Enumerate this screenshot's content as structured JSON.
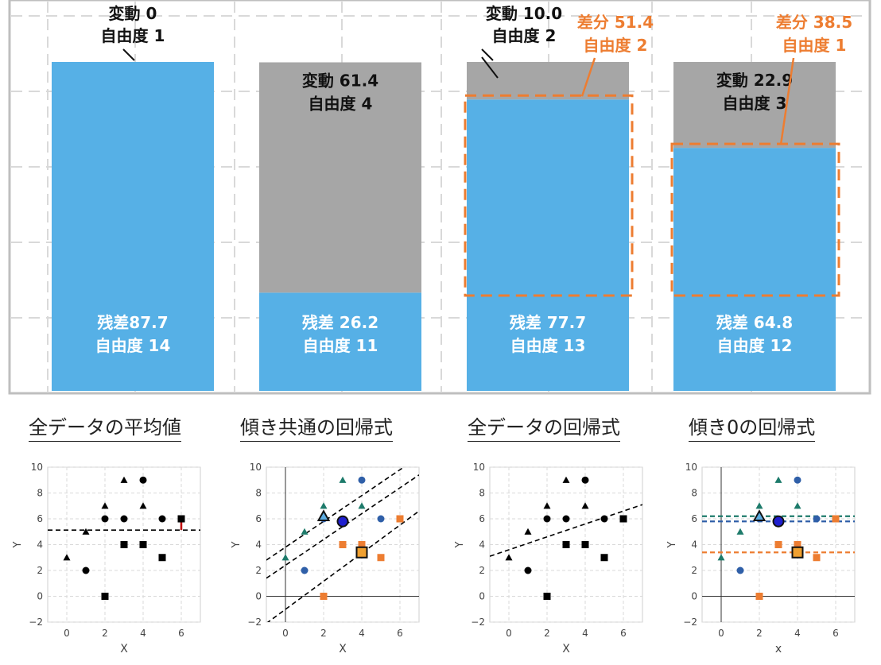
{
  "chart_data": {
    "main": {
      "type": "bar",
      "stacked": true,
      "ylim": [
        0,
        87.7
      ],
      "grid": true,
      "bars": [
        {
          "residual": 87.7,
          "residual_label": "残差87.7",
          "residual_df_label": "自由度 14",
          "variation": 0,
          "variation_label": "変動 0",
          "variation_df_label": "自由度 1",
          "difference": null
        },
        {
          "residual": 26.2,
          "residual_label": "残差 26.2",
          "residual_df_label": "自由度 11",
          "variation": 61.4,
          "variation_label": "変動 61.4",
          "variation_df_label": "自由度 4",
          "difference": null
        },
        {
          "residual": 77.7,
          "residual_label": "残差 77.7",
          "residual_df_label": "自由度 13",
          "variation": 10.0,
          "variation_label": "変動 10.0",
          "variation_df_label": "自由度 2",
          "difference": {
            "value": 51.4,
            "label": "差分 51.4",
            "df_label": "自由度 2"
          }
        },
        {
          "residual": 64.8,
          "residual_label": "残差 64.8",
          "residual_df_label": "自由度 12",
          "variation": 22.9,
          "variation_label": "変動 22.9",
          "variation_df_label": "自由度 3",
          "difference": {
            "value": 38.5,
            "label": "差分 38.5",
            "df_label": "自由度 1"
          }
        }
      ],
      "colors": {
        "residual": "#56b0e6",
        "variation": "#a6a6a6",
        "difference": "#ed7d31",
        "grid": "#d9d9d9",
        "frame": "#bfbfbf"
      }
    },
    "small": [
      {
        "type": "scatter",
        "caption": "全データの平均値",
        "xlabel": "X",
        "ylabel": "Y",
        "xlim": [
          -1,
          7
        ],
        "ylim": [
          -2,
          10
        ],
        "xticks": [
          0,
          2,
          4,
          6
        ],
        "yticks": [
          -2,
          0,
          2,
          4,
          6,
          8,
          10
        ],
        "xtick_labels": [
          "0",
          "2",
          "4",
          "6"
        ],
        "ytick_labels": [
          "−2",
          "0",
          "2",
          "4",
          "6",
          "8",
          "10"
        ],
        "show_axes_lines": false,
        "points": [
          {
            "x": 0,
            "y": 3,
            "m": "triangle",
            "c": "black"
          },
          {
            "x": 1,
            "y": 5,
            "m": "triangle",
            "c": "black"
          },
          {
            "x": 2,
            "y": 7,
            "m": "triangle",
            "c": "black"
          },
          {
            "x": 3,
            "y": 9,
            "m": "triangle",
            "c": "black"
          },
          {
            "x": 4,
            "y": 7,
            "m": "triangle",
            "c": "black"
          },
          {
            "x": 1,
            "y": 2,
            "m": "circle",
            "c": "black"
          },
          {
            "x": 2,
            "y": 6,
            "m": "circle",
            "c": "black"
          },
          {
            "x": 3,
            "y": 6,
            "m": "circle",
            "c": "black"
          },
          {
            "x": 4,
            "y": 9,
            "m": "circle",
            "c": "black"
          },
          {
            "x": 5,
            "y": 6,
            "m": "circle",
            "c": "black"
          },
          {
            "x": 2,
            "y": 0,
            "m": "square",
            "c": "black"
          },
          {
            "x": 3,
            "y": 4,
            "m": "square",
            "c": "black"
          },
          {
            "x": 4,
            "y": 4,
            "m": "square",
            "c": "black"
          },
          {
            "x": 5,
            "y": 3,
            "m": "square",
            "c": "black"
          },
          {
            "x": 6,
            "y": 6,
            "m": "square",
            "c": "black"
          }
        ],
        "lines": [
          {
            "x1": -1,
            "y1": 5.13,
            "x2": 7,
            "y2": 5.13,
            "c": "black"
          }
        ],
        "residual_segment": {
          "x": 6,
          "y1": 6,
          "y2": 5.13,
          "c": "#c00000"
        },
        "big_markers": []
      },
      {
        "type": "scatter",
        "caption": "傾き共通の回帰式",
        "xlabel": "X",
        "ylabel": "Y",
        "xlim": [
          -1,
          7
        ],
        "ylim": [
          -2,
          10
        ],
        "xticks": [
          0,
          2,
          4,
          6
        ],
        "yticks": [
          -2,
          0,
          2,
          4,
          6,
          8,
          10
        ],
        "xtick_labels": [
          "0",
          "2",
          "4",
          "6"
        ],
        "ytick_labels": [
          "−2",
          "0",
          "2",
          "4",
          "6",
          "8",
          "10"
        ],
        "show_axes_lines": true,
        "points": [
          {
            "x": 0,
            "y": 3,
            "m": "triangle",
            "c": "teal"
          },
          {
            "x": 1,
            "y": 5,
            "m": "triangle",
            "c": "teal"
          },
          {
            "x": 2,
            "y": 7,
            "m": "triangle",
            "c": "teal"
          },
          {
            "x": 3,
            "y": 9,
            "m": "triangle",
            "c": "teal"
          },
          {
            "x": 4,
            "y": 7,
            "m": "triangle",
            "c": "teal"
          },
          {
            "x": 1,
            "y": 2,
            "m": "circle",
            "c": "blue"
          },
          {
            "x": 2,
            "y": 6,
            "m": "circle",
            "c": "blue"
          },
          {
            "x": 4,
            "y": 9,
            "m": "circle",
            "c": "blue"
          },
          {
            "x": 5,
            "y": 6,
            "m": "circle",
            "c": "blue"
          },
          {
            "x": 2,
            "y": 0,
            "m": "square",
            "c": "orange"
          },
          {
            "x": 3,
            "y": 4,
            "m": "square",
            "c": "orange"
          },
          {
            "x": 4,
            "y": 4,
            "m": "square",
            "c": "orange"
          },
          {
            "x": 5,
            "y": 3,
            "m": "square",
            "c": "orange"
          },
          {
            "x": 6,
            "y": 6,
            "m": "square",
            "c": "orange"
          }
        ],
        "lines": [
          {
            "x1": -1,
            "y1": 2.8,
            "x2": 7,
            "y2": 10.8,
            "c": "black"
          },
          {
            "x1": -1,
            "y1": 1.4,
            "x2": 7,
            "y2": 9.4,
            "c": "black"
          },
          {
            "x1": -1,
            "y1": -2.1,
            "x2": 7,
            "y2": 6.6,
            "c": "black"
          }
        ],
        "big_markers": [
          {
            "x": 2,
            "y": 6.2,
            "m": "triangle",
            "c": "#5dade2"
          },
          {
            "x": 3,
            "y": 5.8,
            "m": "circle",
            "c": "#1f1fcf"
          },
          {
            "x": 4,
            "y": 3.4,
            "m": "square",
            "c": "#f0a030"
          }
        ]
      },
      {
        "type": "scatter",
        "caption": "全データの回帰式",
        "xlabel": "X",
        "ylabel": "Y",
        "xlim": [
          -1,
          7
        ],
        "ylim": [
          -2,
          10
        ],
        "xticks": [
          0,
          2,
          4,
          6
        ],
        "yticks": [
          -2,
          0,
          2,
          4,
          6,
          8,
          10
        ],
        "xtick_labels": [
          "0",
          "2",
          "4",
          "6"
        ],
        "ytick_labels": [
          "−2",
          "0",
          "2",
          "4",
          "6",
          "8",
          "10"
        ],
        "show_axes_lines": false,
        "points": [
          {
            "x": 0,
            "y": 3,
            "m": "triangle",
            "c": "black"
          },
          {
            "x": 1,
            "y": 5,
            "m": "triangle",
            "c": "black"
          },
          {
            "x": 2,
            "y": 7,
            "m": "triangle",
            "c": "black"
          },
          {
            "x": 3,
            "y": 9,
            "m": "triangle",
            "c": "black"
          },
          {
            "x": 4,
            "y": 7,
            "m": "triangle",
            "c": "black"
          },
          {
            "x": 1,
            "y": 2,
            "m": "circle",
            "c": "black"
          },
          {
            "x": 2,
            "y": 6,
            "m": "circle",
            "c": "black"
          },
          {
            "x": 3,
            "y": 6,
            "m": "circle",
            "c": "black"
          },
          {
            "x": 4,
            "y": 9,
            "m": "circle",
            "c": "black"
          },
          {
            "x": 5,
            "y": 6,
            "m": "circle",
            "c": "black"
          },
          {
            "x": 2,
            "y": 0,
            "m": "square",
            "c": "black"
          },
          {
            "x": 3,
            "y": 4,
            "m": "square",
            "c": "black"
          },
          {
            "x": 4,
            "y": 4,
            "m": "square",
            "c": "black"
          },
          {
            "x": 5,
            "y": 3,
            "m": "square",
            "c": "black"
          },
          {
            "x": 6,
            "y": 6,
            "m": "square",
            "c": "black"
          }
        ],
        "lines": [
          {
            "x1": -1,
            "y1": 3.1,
            "x2": 7,
            "y2": 7.1,
            "c": "black"
          }
        ],
        "big_markers": []
      },
      {
        "type": "scatter",
        "caption": "傾き0の回帰式",
        "xlabel": "x",
        "ylabel": "Y",
        "xlim": [
          -1,
          7
        ],
        "ylim": [
          -2,
          10
        ],
        "xticks": [
          0,
          2,
          4,
          6
        ],
        "yticks": [
          -2,
          0,
          2,
          4,
          6,
          8,
          10
        ],
        "xtick_labels": [
          "0",
          "2",
          "4",
          "6"
        ],
        "ytick_labels": [
          "−2",
          "0",
          "2",
          "4",
          "6",
          "8",
          "10"
        ],
        "show_axes_lines": true,
        "points": [
          {
            "x": 0,
            "y": 3,
            "m": "triangle",
            "c": "teal"
          },
          {
            "x": 1,
            "y": 5,
            "m": "triangle",
            "c": "teal"
          },
          {
            "x": 2,
            "y": 7,
            "m": "triangle",
            "c": "teal"
          },
          {
            "x": 3,
            "y": 9,
            "m": "triangle",
            "c": "teal"
          },
          {
            "x": 4,
            "y": 7,
            "m": "triangle",
            "c": "teal"
          },
          {
            "x": 1,
            "y": 2,
            "m": "circle",
            "c": "blue"
          },
          {
            "x": 2,
            "y": 6,
            "m": "circle",
            "c": "blue"
          },
          {
            "x": 4,
            "y": 9,
            "m": "circle",
            "c": "blue"
          },
          {
            "x": 5,
            "y": 6,
            "m": "circle",
            "c": "blue"
          },
          {
            "x": 2,
            "y": 0,
            "m": "square",
            "c": "orange"
          },
          {
            "x": 3,
            "y": 4,
            "m": "square",
            "c": "orange"
          },
          {
            "x": 4,
            "y": 4,
            "m": "square",
            "c": "orange"
          },
          {
            "x": 5,
            "y": 3,
            "m": "square",
            "c": "orange"
          },
          {
            "x": 6,
            "y": 6,
            "m": "square",
            "c": "orange"
          }
        ],
        "lines": [
          {
            "x1": -1,
            "y1": 6.2,
            "x2": 7,
            "y2": 6.2,
            "c": "#1e7b6b"
          },
          {
            "x1": -1,
            "y1": 5.8,
            "x2": 7,
            "y2": 5.8,
            "c": "#2f5fa8"
          },
          {
            "x1": -1,
            "y1": 3.4,
            "x2": 7,
            "y2": 3.4,
            "c": "#ed7d31"
          }
        ],
        "big_markers": [
          {
            "x": 2,
            "y": 6.2,
            "m": "triangle",
            "c": "#5dade2"
          },
          {
            "x": 3,
            "y": 5.8,
            "m": "circle",
            "c": "#1f1fcf"
          },
          {
            "x": 4,
            "y": 3.4,
            "m": "square",
            "c": "#f0a030"
          }
        ]
      }
    ],
    "marker_colors": {
      "black": "#000000",
      "teal": "#1e7b6b",
      "blue": "#2f5fa8",
      "orange": "#ed7d31"
    }
  }
}
